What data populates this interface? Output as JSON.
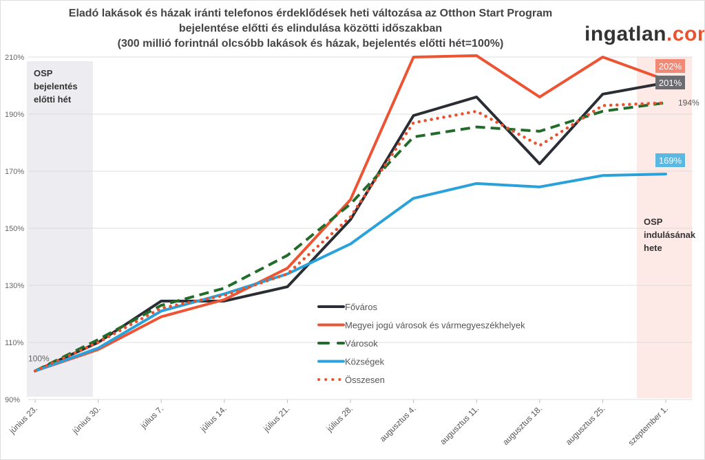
{
  "chart_data": {
    "type": "line",
    "title": [
      "Eladó lakások és házak iránti telefonos érdeklődések heti változása az Otthon Start Program",
      "bejelentése előtti és elindulása közötti időszakban",
      "(300 millió forintnál olcsóbb lakások és házak, bejelentés előtti hét=100%)"
    ],
    "categories": [
      "június 23.",
      "június 30.",
      "július 7.",
      "július 14.",
      "július 21.",
      "július 28.",
      "augusztus 4.",
      "augusztus 11.",
      "augusztus 18.",
      "augusztus 25.",
      "szeptember 1."
    ],
    "ylim": [
      90,
      210
    ],
    "yticks": [
      90,
      110,
      130,
      150,
      170,
      190,
      210
    ],
    "ytick_suffix": "%",
    "grid": true,
    "legend_placement": "center-right",
    "series": [
      {
        "name": "Főváros",
        "color": "#2b2d35",
        "style": "solid",
        "values": [
          100,
          110,
          124.5,
          124.5,
          129.5,
          153,
          189.5,
          196,
          172.6,
          197,
          201
        ]
      },
      {
        "name": "Megyei jogú városok és vármegyeszékhelyek",
        "color": "#ec5433",
        "style": "solid",
        "values": [
          100,
          107.5,
          119,
          125,
          136,
          160,
          210,
          210.5,
          196,
          210,
          202
        ]
      },
      {
        "name": "Városok",
        "color": "#236b2a",
        "style": "dash",
        "values": [
          100,
          111,
          123,
          129,
          140.5,
          158.5,
          182,
          185.5,
          184,
          191,
          194
        ]
      },
      {
        "name": "Községek",
        "color": "#2aa2d9",
        "style": "solid",
        "values": [
          100,
          108,
          121,
          127,
          134,
          144.5,
          160.5,
          165.7,
          164.5,
          168.5,
          169
        ]
      },
      {
        "name": "Összesen",
        "color": "#e8532f",
        "style": "dot",
        "values": [
          100,
          110,
          122,
          126.5,
          134,
          154,
          187,
          191,
          179,
          193,
          194
        ]
      }
    ],
    "annotations": {
      "start_label": "100%",
      "end_labels": [
        {
          "series": "Megyei jogú városok és vármegyeszékhelyek",
          "text": "202%",
          "bg": "#f08a76"
        },
        {
          "series": "Főváros",
          "text": "201%",
          "bg": "#6b6b70"
        },
        {
          "series": "Összesen",
          "text": "194%",
          "bg": ""
        },
        {
          "series": "Községek",
          "text": "169%",
          "bg": "#5ab8e2"
        }
      ],
      "left_band": "OSP\nbejelentés\nelőtti hét",
      "right_band": "OSP\nindulásának\nhete"
    }
  },
  "logo": {
    "main": "ingatlan",
    "suffix": ".com"
  }
}
